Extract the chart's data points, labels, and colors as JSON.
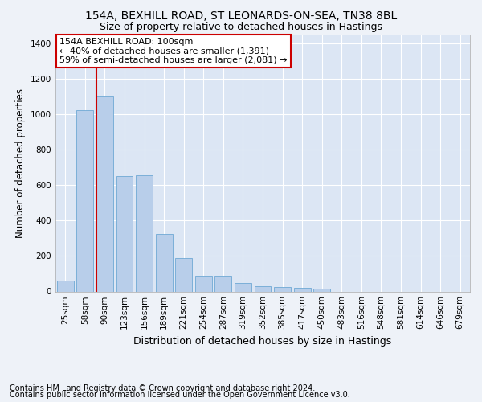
{
  "title1": "154A, BEXHILL ROAD, ST LEONARDS-ON-SEA, TN38 8BL",
  "title2": "Size of property relative to detached houses in Hastings",
  "xlabel": "Distribution of detached houses by size in Hastings",
  "ylabel": "Number of detached properties",
  "footer1": "Contains HM Land Registry data © Crown copyright and database right 2024.",
  "footer2": "Contains public sector information licensed under the Open Government Licence v3.0.",
  "annotation_line1": "154A BEXHILL ROAD: 100sqm",
  "annotation_line2": "← 40% of detached houses are smaller (1,391)",
  "annotation_line3": "59% of semi-detached houses are larger (2,081) →",
  "bar_color": "#b8ceea",
  "bar_edge_color": "#6fa8d4",
  "vline_color": "#cc0000",
  "vline_bar_index": 2,
  "categories": [
    "25sqm",
    "58sqm",
    "90sqm",
    "123sqm",
    "156sqm",
    "189sqm",
    "221sqm",
    "254sqm",
    "287sqm",
    "319sqm",
    "352sqm",
    "385sqm",
    "417sqm",
    "450sqm",
    "483sqm",
    "516sqm",
    "548sqm",
    "581sqm",
    "614sqm",
    "646sqm",
    "679sqm"
  ],
  "values": [
    62,
    1020,
    1100,
    650,
    655,
    325,
    190,
    90,
    90,
    47,
    30,
    25,
    20,
    14,
    0,
    0,
    0,
    0,
    0,
    0,
    0
  ],
  "ylim": [
    0,
    1450
  ],
  "yticks": [
    0,
    200,
    400,
    600,
    800,
    1000,
    1200,
    1400
  ],
  "background_color": "#eef2f8",
  "plot_bg_color": "#dce6f4",
  "grid_color": "#ffffff",
  "annotation_box_facecolor": "#ffffff",
  "annotation_box_edgecolor": "#cc0000",
  "title_fontsize": 10,
  "subtitle_fontsize": 9,
  "tick_fontsize": 7.5,
  "ylabel_fontsize": 8.5,
  "xlabel_fontsize": 9,
  "annotation_fontsize": 8,
  "footer_fontsize": 7
}
